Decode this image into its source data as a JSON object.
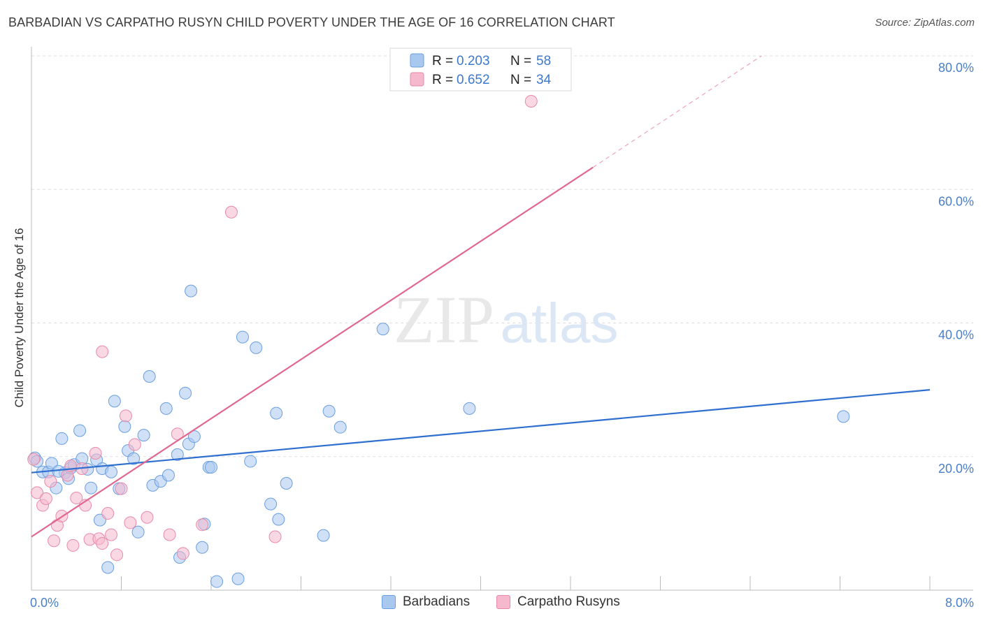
{
  "title": "BARBADIAN VS CARPATHO RUSYN CHILD POVERTY UNDER THE AGE OF 16 CORRELATION CHART",
  "source": "Source: ZipAtlas.com",
  "watermark": {
    "zip": "ZIP",
    "atlas": "atlas"
  },
  "legend_stats": [
    {
      "r_label": "R =",
      "r_value": "0.203",
      "n_label": "N =",
      "n_value": "58"
    },
    {
      "r_label": "R =",
      "r_value": "0.652",
      "n_label": "N =",
      "n_value": "34"
    }
  ],
  "bottom_legend": {
    "series1": "Barbadians",
    "series2": "Carpatho Rusyns"
  },
  "colors": {
    "blue_fill": "#a9c8f0",
    "blue_stroke": "#6a9ee0",
    "blue_line": "#2f6fd0",
    "pink_fill": "#f6b8cc",
    "pink_stroke": "#e88aa8",
    "pink_line": "#e06890",
    "tick_label": "#4a7fc9",
    "grid": "#dddddd"
  },
  "chart_data": {
    "type": "scatter",
    "title": "BARBADIAN VS CARPATHO RUSYN CHILD POVERTY UNDER THE AGE OF 16 CORRELATION CHART",
    "xlabel": "",
    "ylabel": "Child Poverty Under the Age of 16",
    "xlim": [
      0,
      8
    ],
    "ylim": [
      0,
      80
    ],
    "x_tick_labels": [
      {
        "value": 0,
        "label": "0.0%"
      },
      {
        "value": 8,
        "label": "8.0%"
      }
    ],
    "y_tick_labels": [
      {
        "value": 20,
        "label": "20.0%"
      },
      {
        "value": 40,
        "label": "40.0%"
      },
      {
        "value": 60,
        "label": "60.0%"
      },
      {
        "value": 80,
        "label": "80.0%"
      }
    ],
    "grid": true,
    "legend_position": "top-center",
    "series": [
      {
        "name": "Barbadians",
        "r": 0.203,
        "n": 58,
        "trend": {
          "x0": 0,
          "y0": 17.6,
          "x1": 8,
          "y1": 30.0
        },
        "points": [
          [
            0.03,
            19.8
          ],
          [
            0.05,
            19.3
          ],
          [
            0.1,
            17.7
          ],
          [
            0.15,
            17.7
          ],
          [
            0.18,
            19.0
          ],
          [
            0.22,
            15.3
          ],
          [
            0.27,
            22.7
          ],
          [
            0.3,
            17.6
          ],
          [
            0.33,
            16.7
          ],
          [
            0.35,
            18.3
          ],
          [
            0.38,
            18.8
          ],
          [
            0.43,
            23.9
          ],
          [
            0.45,
            19.7
          ],
          [
            0.5,
            18.1
          ],
          [
            0.53,
            15.3
          ],
          [
            0.58,
            19.5
          ],
          [
            0.61,
            10.5
          ],
          [
            0.63,
            18.2
          ],
          [
            0.71,
            17.7
          ],
          [
            0.74,
            28.3
          ],
          [
            0.78,
            15.2
          ],
          [
            0.83,
            24.5
          ],
          [
            0.86,
            20.9
          ],
          [
            0.91,
            19.7
          ],
          [
            0.95,
            8.7
          ],
          [
            1.0,
            23.2
          ],
          [
            1.05,
            32.0
          ],
          [
            1.08,
            15.7
          ],
          [
            1.15,
            16.3
          ],
          [
            1.2,
            27.2
          ],
          [
            1.22,
            17.2
          ],
          [
            1.3,
            20.3
          ],
          [
            1.32,
            4.9
          ],
          [
            1.37,
            29.5
          ],
          [
            1.4,
            21.9
          ],
          [
            1.42,
            44.8
          ],
          [
            1.45,
            23.0
          ],
          [
            1.52,
            6.4
          ],
          [
            1.54,
            9.9
          ],
          [
            1.58,
            18.4
          ],
          [
            1.6,
            18.4
          ],
          [
            1.65,
            1.3
          ],
          [
            1.84,
            1.7
          ],
          [
            1.88,
            37.9
          ],
          [
            1.95,
            19.3
          ],
          [
            2.0,
            36.3
          ],
          [
            2.13,
            12.9
          ],
          [
            2.2,
            10.6
          ],
          [
            2.18,
            26.5
          ],
          [
            2.27,
            16.0
          ],
          [
            2.6,
            8.2
          ],
          [
            2.65,
            26.8
          ],
          [
            2.75,
            24.4
          ],
          [
            3.13,
            39.1
          ],
          [
            3.9,
            27.2
          ],
          [
            7.23,
            26.0
          ],
          [
            0.24,
            17.8
          ],
          [
            0.68,
            3.4
          ]
        ]
      },
      {
        "name": "Carpatho Rusyns",
        "r": 0.652,
        "n": 34,
        "trend": {
          "x0": 0,
          "y0": 8.0,
          "x1": 5.0,
          "y1": 63.3
        },
        "trend_dashed_to": {
          "x": 6.5,
          "y": 80.0
        },
        "points": [
          [
            0.02,
            19.6
          ],
          [
            0.05,
            14.6
          ],
          [
            0.1,
            12.7
          ],
          [
            0.13,
            13.7
          ],
          [
            0.17,
            16.3
          ],
          [
            0.2,
            7.4
          ],
          [
            0.23,
            9.7
          ],
          [
            0.27,
            11.1
          ],
          [
            0.32,
            17.2
          ],
          [
            0.35,
            18.6
          ],
          [
            0.37,
            6.7
          ],
          [
            0.4,
            13.8
          ],
          [
            0.45,
            18.2
          ],
          [
            0.48,
            12.7
          ],
          [
            0.52,
            7.6
          ],
          [
            0.57,
            20.5
          ],
          [
            0.6,
            7.7
          ],
          [
            0.63,
            7.0
          ],
          [
            0.68,
            11.5
          ],
          [
            0.71,
            8.3
          ],
          [
            0.76,
            5.3
          ],
          [
            0.8,
            15.2
          ],
          [
            0.84,
            26.1
          ],
          [
            0.88,
            10.1
          ],
          [
            0.92,
            21.8
          ],
          [
            1.03,
            10.9
          ],
          [
            1.23,
            8.3
          ],
          [
            1.3,
            23.4
          ],
          [
            1.35,
            5.5
          ],
          [
            1.52,
            9.8
          ],
          [
            1.78,
            56.6
          ],
          [
            2.17,
            8.0
          ],
          [
            0.63,
            35.7
          ],
          [
            4.45,
            73.2
          ]
        ]
      }
    ]
  }
}
